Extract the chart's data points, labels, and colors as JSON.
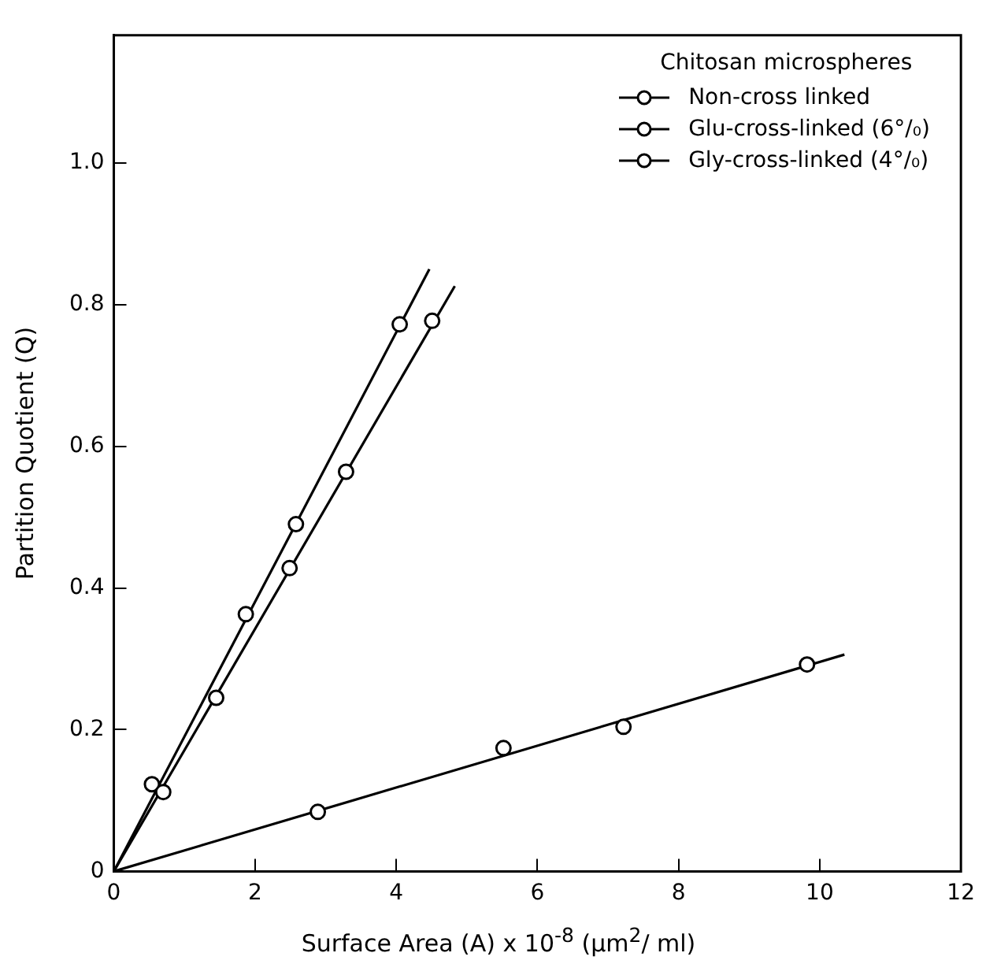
{
  "chart_data": {
    "type": "scatter",
    "xlabel": "Surface Area (A) x 10$^{-8}$ (μm$^{2}$/ ml)",
    "ylabel": "Partition Quotient (Q)",
    "legend_title": "Chitosan microspheres",
    "legend": "top right",
    "grid": false,
    "xlim": [
      0,
      12
    ],
    "xticks": [
      0,
      2,
      4,
      6,
      8,
      10,
      12
    ],
    "ylim": [
      0,
      1.18
    ],
    "yticks": [
      0,
      {
        "value": 0.2,
        "label": "0.2"
      },
      {
        "value": 0.4,
        "label": "0.4"
      },
      {
        "value": 0.6,
        "label": "0.6"
      },
      {
        "value": 0.8,
        "label": "0.8"
      },
      {
        "value": 1.0,
        "label": "1.0"
      }
    ],
    "series": [
      {
        "name": "Non-cross linked",
        "color": "#000000",
        "marker": "circle",
        "x": [
          2.89,
          5.52,
          7.22,
          9.82
        ],
        "values": [
          0.084,
          0.174,
          0.204,
          0.292
        ]
      },
      {
        "name": "Glu-cross-linked (6°/₀)",
        "color": "#000000",
        "marker": "circle",
        "x": [
          0.7,
          1.45,
          2.49,
          3.29,
          4.51
        ],
        "values": [
          0.112,
          0.245,
          0.428,
          0.564,
          0.777
        ]
      },
      {
        "name": "Gly-cross-linked (4°/₀)",
        "color": "#000000",
        "marker": "circle",
        "x": [
          0.54,
          1.87,
          2.58,
          4.05
        ],
        "values": [
          0.123,
          0.363,
          0.49,
          0.772
        ]
      },
      {
        "type": "line",
        "color": "#000000",
        "x": [
          0,
          10.35
        ],
        "values": [
          0,
          0.306
        ]
      },
      {
        "type": "line",
        "color": "#000000",
        "x": [
          0,
          4.83
        ],
        "values": [
          0,
          0.826
        ]
      },
      {
        "type": "line",
        "color": "#000000",
        "x": [
          0,
          4.47
        ],
        "values": [
          0,
          0.85
        ]
      }
    ]
  }
}
